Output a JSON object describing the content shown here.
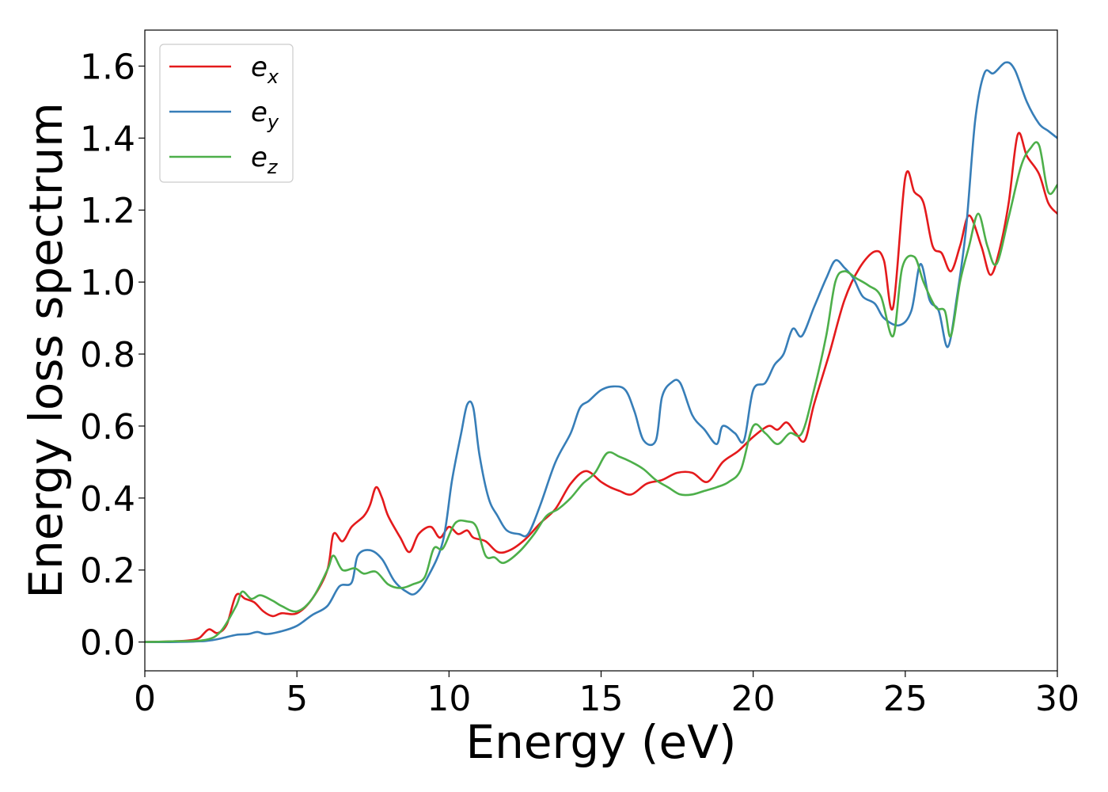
{
  "chart_data": {
    "type": "line",
    "title": "",
    "xlabel": "Energy (eV)",
    "ylabel": "Energy loss spectrum",
    "xlim": [
      0,
      30
    ],
    "ylim": [
      -0.08,
      1.7
    ],
    "xticks": [
      "0",
      "5",
      "10",
      "15",
      "20",
      "25",
      "30"
    ],
    "xtick_values": [
      0,
      5,
      10,
      15,
      20,
      25,
      30
    ],
    "yticks": [
      "0.0",
      "0.2",
      "0.4",
      "0.6",
      "0.8",
      "1.0",
      "1.2",
      "1.4",
      "1.6"
    ],
    "ytick_values": [
      0.0,
      0.2,
      0.4,
      0.6,
      0.8,
      1.0,
      1.2,
      1.4,
      1.6
    ],
    "grid": false,
    "legend_position": "top-left",
    "series": [
      {
        "name": "e",
        "sub": "x",
        "color": "#e41a1c",
        "points": [
          [
            0,
            0
          ],
          [
            1,
            0.002
          ],
          [
            1.5,
            0.005
          ],
          [
            1.8,
            0.012
          ],
          [
            2.1,
            0.035
          ],
          [
            2.4,
            0.025
          ],
          [
            2.7,
            0.05
          ],
          [
            3.0,
            0.13
          ],
          [
            3.3,
            0.12
          ],
          [
            3.6,
            0.11
          ],
          [
            3.9,
            0.085
          ],
          [
            4.2,
            0.072
          ],
          [
            4.5,
            0.08
          ],
          [
            5.0,
            0.08
          ],
          [
            5.5,
            0.12
          ],
          [
            6.0,
            0.2
          ],
          [
            6.2,
            0.3
          ],
          [
            6.5,
            0.28
          ],
          [
            6.8,
            0.32
          ],
          [
            7.2,
            0.35
          ],
          [
            7.4,
            0.38
          ],
          [
            7.6,
            0.43
          ],
          [
            7.8,
            0.4
          ],
          [
            8.0,
            0.35
          ],
          [
            8.4,
            0.29
          ],
          [
            8.7,
            0.25
          ],
          [
            9.0,
            0.3
          ],
          [
            9.4,
            0.32
          ],
          [
            9.7,
            0.29
          ],
          [
            10.0,
            0.32
          ],
          [
            10.3,
            0.3
          ],
          [
            10.6,
            0.31
          ],
          [
            10.8,
            0.29
          ],
          [
            11.2,
            0.28
          ],
          [
            11.6,
            0.25
          ],
          [
            12.0,
            0.255
          ],
          [
            12.5,
            0.285
          ],
          [
            13.0,
            0.33
          ],
          [
            13.5,
            0.37
          ],
          [
            14.0,
            0.44
          ],
          [
            14.5,
            0.475
          ],
          [
            15.0,
            0.445
          ],
          [
            15.3,
            0.43
          ],
          [
            15.6,
            0.42
          ],
          [
            16.0,
            0.41
          ],
          [
            16.5,
            0.44
          ],
          [
            17.0,
            0.45
          ],
          [
            17.5,
            0.47
          ],
          [
            18.0,
            0.47
          ],
          [
            18.5,
            0.445
          ],
          [
            19.0,
            0.5
          ],
          [
            19.5,
            0.53
          ],
          [
            20.0,
            0.57
          ],
          [
            20.5,
            0.6
          ],
          [
            20.8,
            0.59
          ],
          [
            21.1,
            0.61
          ],
          [
            21.4,
            0.58
          ],
          [
            21.7,
            0.56
          ],
          [
            22.0,
            0.66
          ],
          [
            22.5,
            0.8
          ],
          [
            23.0,
            0.95
          ],
          [
            23.5,
            1.04
          ],
          [
            24.0,
            1.085
          ],
          [
            24.3,
            1.06
          ],
          [
            24.6,
            0.93
          ],
          [
            25.0,
            1.29
          ],
          [
            25.3,
            1.25
          ],
          [
            25.6,
            1.22
          ],
          [
            25.9,
            1.1
          ],
          [
            26.2,
            1.08
          ],
          [
            26.5,
            1.03
          ],
          [
            26.8,
            1.1
          ],
          [
            27.1,
            1.185
          ],
          [
            27.5,
            1.1
          ],
          [
            27.8,
            1.02
          ],
          [
            28.1,
            1.09
          ],
          [
            28.4,
            1.22
          ],
          [
            28.7,
            1.41
          ],
          [
            29.0,
            1.35
          ],
          [
            29.4,
            1.3
          ],
          [
            29.7,
            1.22
          ],
          [
            30.0,
            1.19
          ]
        ]
      },
      {
        "name": "e",
        "sub": "y",
        "color": "#377eb8",
        "points": [
          [
            0,
            0
          ],
          [
            1,
            0.0
          ],
          [
            2,
            0.003
          ],
          [
            2.5,
            0.01
          ],
          [
            3.0,
            0.02
          ],
          [
            3.4,
            0.022
          ],
          [
            3.7,
            0.028
          ],
          [
            4.0,
            0.022
          ],
          [
            4.5,
            0.03
          ],
          [
            5.0,
            0.045
          ],
          [
            5.5,
            0.075
          ],
          [
            6.0,
            0.1
          ],
          [
            6.4,
            0.155
          ],
          [
            6.8,
            0.165
          ],
          [
            7.0,
            0.24
          ],
          [
            7.4,
            0.255
          ],
          [
            7.8,
            0.23
          ],
          [
            8.2,
            0.17
          ],
          [
            8.6,
            0.14
          ],
          [
            8.9,
            0.135
          ],
          [
            9.3,
            0.18
          ],
          [
            9.8,
            0.28
          ],
          [
            10.1,
            0.45
          ],
          [
            10.4,
            0.58
          ],
          [
            10.6,
            0.66
          ],
          [
            10.8,
            0.65
          ],
          [
            11.0,
            0.52
          ],
          [
            11.3,
            0.4
          ],
          [
            11.6,
            0.35
          ],
          [
            11.9,
            0.31
          ],
          [
            12.3,
            0.3
          ],
          [
            12.6,
            0.3
          ],
          [
            13.0,
            0.38
          ],
          [
            13.5,
            0.5
          ],
          [
            14.0,
            0.58
          ],
          [
            14.3,
            0.65
          ],
          [
            14.6,
            0.67
          ],
          [
            15.0,
            0.7
          ],
          [
            15.4,
            0.71
          ],
          [
            15.8,
            0.7
          ],
          [
            16.1,
            0.64
          ],
          [
            16.4,
            0.56
          ],
          [
            16.8,
            0.56
          ],
          [
            17.0,
            0.68
          ],
          [
            17.3,
            0.72
          ],
          [
            17.6,
            0.72
          ],
          [
            18.0,
            0.63
          ],
          [
            18.4,
            0.59
          ],
          [
            18.8,
            0.55
          ],
          [
            19.0,
            0.6
          ],
          [
            19.4,
            0.58
          ],
          [
            19.7,
            0.56
          ],
          [
            20.0,
            0.7
          ],
          [
            20.4,
            0.72
          ],
          [
            20.7,
            0.77
          ],
          [
            21.0,
            0.8
          ],
          [
            21.3,
            0.87
          ],
          [
            21.6,
            0.85
          ],
          [
            22.0,
            0.93
          ],
          [
            22.4,
            1.01
          ],
          [
            22.7,
            1.06
          ],
          [
            23.0,
            1.04
          ],
          [
            23.3,
            1.01
          ],
          [
            23.6,
            0.96
          ],
          [
            24.0,
            0.94
          ],
          [
            24.3,
            0.9
          ],
          [
            24.8,
            0.88
          ],
          [
            25.2,
            0.92
          ],
          [
            25.5,
            1.05
          ],
          [
            25.8,
            0.95
          ],
          [
            26.1,
            0.92
          ],
          [
            26.4,
            0.82
          ],
          [
            26.7,
            0.96
          ],
          [
            27.0,
            1.15
          ],
          [
            27.3,
            1.45
          ],
          [
            27.6,
            1.58
          ],
          [
            27.9,
            1.58
          ],
          [
            28.3,
            1.61
          ],
          [
            28.6,
            1.59
          ],
          [
            29.0,
            1.5
          ],
          [
            29.4,
            1.44
          ],
          [
            29.7,
            1.42
          ],
          [
            30.0,
            1.4
          ]
        ]
      },
      {
        "name": "e",
        "sub": "z",
        "color": "#4daf4a",
        "points": [
          [
            0,
            0
          ],
          [
            1,
            0.002
          ],
          [
            2,
            0.006
          ],
          [
            2.5,
            0.03
          ],
          [
            3.0,
            0.1
          ],
          [
            3.2,
            0.14
          ],
          [
            3.5,
            0.12
          ],
          [
            3.8,
            0.13
          ],
          [
            4.2,
            0.115
          ],
          [
            4.5,
            0.1
          ],
          [
            5.0,
            0.085
          ],
          [
            5.5,
            0.12
          ],
          [
            6.0,
            0.2
          ],
          [
            6.2,
            0.24
          ],
          [
            6.5,
            0.2
          ],
          [
            6.9,
            0.205
          ],
          [
            7.2,
            0.19
          ],
          [
            7.6,
            0.195
          ],
          [
            8.0,
            0.16
          ],
          [
            8.4,
            0.15
          ],
          [
            8.8,
            0.16
          ],
          [
            9.2,
            0.18
          ],
          [
            9.5,
            0.26
          ],
          [
            9.8,
            0.26
          ],
          [
            10.2,
            0.33
          ],
          [
            10.6,
            0.335
          ],
          [
            10.9,
            0.32
          ],
          [
            11.2,
            0.24
          ],
          [
            11.5,
            0.235
          ],
          [
            11.8,
            0.22
          ],
          [
            12.3,
            0.25
          ],
          [
            12.8,
            0.3
          ],
          [
            13.2,
            0.35
          ],
          [
            13.6,
            0.37
          ],
          [
            14.0,
            0.4
          ],
          [
            14.4,
            0.44
          ],
          [
            14.8,
            0.47
          ],
          [
            15.2,
            0.525
          ],
          [
            15.6,
            0.515
          ],
          [
            16.0,
            0.5
          ],
          [
            16.4,
            0.48
          ],
          [
            16.8,
            0.45
          ],
          [
            17.2,
            0.43
          ],
          [
            17.6,
            0.41
          ],
          [
            18.0,
            0.41
          ],
          [
            18.4,
            0.42
          ],
          [
            18.8,
            0.43
          ],
          [
            19.2,
            0.445
          ],
          [
            19.6,
            0.48
          ],
          [
            20.0,
            0.6
          ],
          [
            20.4,
            0.58
          ],
          [
            20.8,
            0.55
          ],
          [
            21.2,
            0.58
          ],
          [
            21.6,
            0.58
          ],
          [
            22.0,
            0.7
          ],
          [
            22.4,
            0.85
          ],
          [
            22.7,
            1.0
          ],
          [
            23.0,
            1.03
          ],
          [
            23.4,
            1.01
          ],
          [
            23.8,
            0.99
          ],
          [
            24.2,
            0.96
          ],
          [
            24.6,
            0.85
          ],
          [
            24.9,
            1.04
          ],
          [
            25.3,
            1.07
          ],
          [
            25.6,
            1.0
          ],
          [
            26.0,
            0.93
          ],
          [
            26.3,
            0.92
          ],
          [
            26.5,
            0.85
          ],
          [
            26.8,
            1.0
          ],
          [
            27.1,
            1.1
          ],
          [
            27.4,
            1.19
          ],
          [
            27.7,
            1.1
          ],
          [
            28.0,
            1.05
          ],
          [
            28.4,
            1.18
          ],
          [
            28.8,
            1.32
          ],
          [
            29.1,
            1.37
          ],
          [
            29.4,
            1.38
          ],
          [
            29.7,
            1.25
          ],
          [
            30.0,
            1.27
          ]
        ]
      }
    ]
  }
}
